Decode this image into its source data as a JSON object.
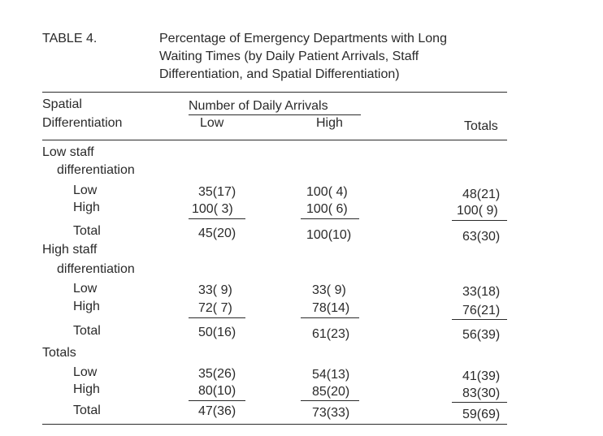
{
  "table": {
    "label": "TABLE 4.",
    "title_lines": [
      "Percentage of Emergency Departments with Long",
      "Waiting Times (by Daily Patient Arrivals, Staff",
      "Differentiation, and Spatial Differentiation)"
    ],
    "header": {
      "stub_line1": "Spatial",
      "stub_line2": "Differentiation",
      "span_label": "Number of Daily Arrivals",
      "col_low": "Low",
      "col_high": "High",
      "col_totals": "Totals"
    },
    "sections": [
      {
        "heading_lines": [
          "Low staff",
          "differentiation"
        ],
        "rows": [
          {
            "label": "Low",
            "low": "35(17)",
            "high": "100( 4)",
            "total": "48(21)"
          },
          {
            "label": "High",
            "low": "100( 3)",
            "high": "100( 6)",
            "total": "100( 9)"
          },
          {
            "label": "Total",
            "low": "45(20)",
            "high": "100(10)",
            "total": "63(30)"
          }
        ]
      },
      {
        "heading_lines": [
          "High staff",
          "differentiation"
        ],
        "rows": [
          {
            "label": "Low",
            "low": "33( 9)",
            "high": "33( 9)",
            "total": "33(18)"
          },
          {
            "label": "High",
            "low": "72( 7)",
            "high": "78(14)",
            "total": "76(21)"
          },
          {
            "label": "Total",
            "low": "50(16)",
            "high": "61(23)",
            "total": "56(39)"
          }
        ]
      },
      {
        "heading_lines": [
          "Totals"
        ],
        "rows": [
          {
            "label": "Low",
            "low": "35(26)",
            "high": "54(13)",
            "total": "41(39)"
          },
          {
            "label": "High",
            "low": "80(10)",
            "high": "85(20)",
            "total": "83(30)"
          },
          {
            "label": "Total",
            "low": "47(36)",
            "high": "73(33)",
            "total": "59(69)"
          }
        ]
      }
    ]
  }
}
